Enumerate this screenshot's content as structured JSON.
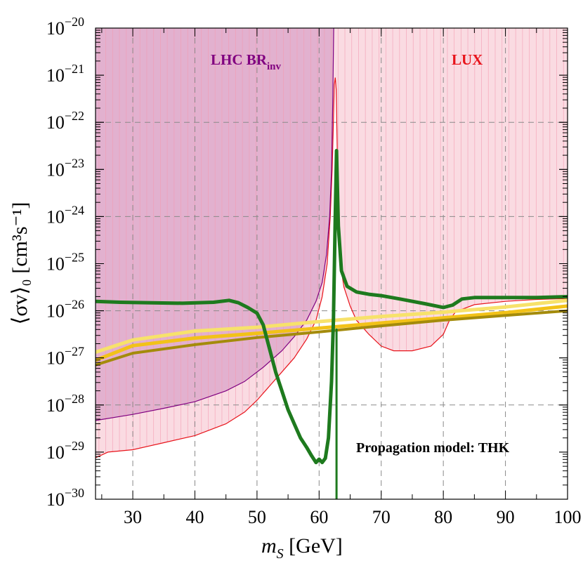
{
  "chart_data": {
    "type": "line",
    "xlabel": {
      "main": "m",
      "sub": "S",
      "rest": " [GeV]"
    },
    "ylabel": "⟨σv⟩₀ [cm³s⁻¹]",
    "xlim": [
      24,
      100
    ],
    "ylim_log10": [
      -30,
      -20
    ],
    "x_ticks": [
      30,
      40,
      50,
      60,
      70,
      80,
      90,
      100
    ],
    "y_ticks_exp": [
      -30,
      -29,
      -28,
      -27,
      -26,
      -25,
      -24,
      -23,
      -22,
      -21,
      -20
    ],
    "y_tick_base": "10",
    "grid_x": [
      30,
      40,
      50,
      60,
      70,
      80,
      90
    ],
    "grid_y_exp": [
      -28,
      -26,
      -24,
      -22
    ],
    "annotation": "Propagation model: THK",
    "regions": [
      {
        "name": "LHC BR",
        "label_sub": "inv",
        "color": "#800080",
        "fill": "#d9a3c8",
        "boundary": [
          [
            24,
            -28.33
          ],
          [
            30,
            -28.2
          ],
          [
            35,
            -28.07
          ],
          [
            40,
            -27.93
          ],
          [
            45,
            -27.7
          ],
          [
            48,
            -27.5
          ],
          [
            51,
            -27.2
          ],
          [
            54,
            -26.85
          ],
          [
            56,
            -26.55
          ],
          [
            58,
            -26.2
          ],
          [
            59.5,
            -25.8
          ],
          [
            60.5,
            -25.4
          ],
          [
            61.2,
            -24.8
          ],
          [
            61.7,
            -24
          ],
          [
            62,
            -23
          ],
          [
            62.2,
            -21.5
          ],
          [
            62.35,
            -20
          ]
        ]
      },
      {
        "name": "LUX",
        "color": "#e8141b",
        "fill": "#fadbe2",
        "boundary": [
          [
            24,
            -29.12
          ],
          [
            26,
            -29.0
          ],
          [
            30,
            -28.95
          ],
          [
            35,
            -28.8
          ],
          [
            40,
            -28.65
          ],
          [
            45,
            -28.4
          ],
          [
            48,
            -28.15
          ],
          [
            50,
            -27.9
          ],
          [
            52,
            -27.6
          ],
          [
            54,
            -27.3
          ],
          [
            56,
            -27.0
          ],
          [
            58,
            -26.6
          ],
          [
            59.5,
            -26.2
          ],
          [
            60.5,
            -25.7
          ],
          [
            61.3,
            -25.0
          ],
          [
            61.8,
            -24.0
          ],
          [
            62.1,
            -23.0
          ],
          [
            62.3,
            -22.0
          ],
          [
            62.45,
            -21.2
          ],
          [
            62.6,
            -21.05
          ],
          [
            62.75,
            -21.3
          ],
          [
            62.9,
            -22.5
          ],
          [
            63.1,
            -24.0
          ],
          [
            63.4,
            -25.0
          ],
          [
            64,
            -25.5
          ],
          [
            65,
            -25.9
          ],
          [
            66,
            -26.2
          ],
          [
            68,
            -26.5
          ],
          [
            70,
            -26.75
          ],
          [
            72,
            -26.85
          ],
          [
            75,
            -26.85
          ],
          [
            78,
            -26.75
          ],
          [
            80,
            -26.5
          ],
          [
            81,
            -26.2
          ],
          [
            82,
            -26.02
          ],
          [
            85,
            -25.87
          ],
          [
            90,
            -25.8
          ],
          [
            95,
            -25.76
          ],
          [
            100,
            -25.74
          ]
        ]
      }
    ],
    "series": [
      {
        "name": "yellow-band-upper",
        "color": "#f7e26b",
        "points": [
          [
            24,
            -26.88
          ],
          [
            30,
            -26.62
          ],
          [
            40,
            -26.43
          ],
          [
            50,
            -26.35
          ],
          [
            60,
            -26.23
          ],
          [
            70,
            -26.12
          ],
          [
            80,
            -26.03
          ],
          [
            90,
            -25.92
          ],
          [
            100,
            -25.78
          ]
        ]
      },
      {
        "name": "yellow-band-lower",
        "color": "#f2c218",
        "points": [
          [
            24,
            -27.05
          ],
          [
            30,
            -26.74
          ],
          [
            40,
            -26.58
          ],
          [
            50,
            -26.48
          ],
          [
            60,
            -26.37
          ],
          [
            70,
            -26.26
          ],
          [
            80,
            -26.15
          ],
          [
            90,
            -26.04
          ],
          [
            100,
            -25.9
          ]
        ]
      },
      {
        "name": "olive-line",
        "color": "#a48b0b",
        "points": [
          [
            24,
            -27.15
          ],
          [
            30,
            -26.9
          ],
          [
            40,
            -26.72
          ],
          [
            50,
            -26.57
          ],
          [
            60,
            -26.45
          ],
          [
            70,
            -26.32
          ],
          [
            80,
            -26.2
          ],
          [
            90,
            -26.1
          ],
          [
            100,
            -26.0
          ]
        ]
      },
      {
        "name": "thick-green-curve",
        "color": "#1e7a1e",
        "points": [
          [
            24,
            -25.8
          ],
          [
            28,
            -25.82
          ],
          [
            33,
            -25.83
          ],
          [
            38,
            -25.84
          ],
          [
            43,
            -25.82
          ],
          [
            45.5,
            -25.78
          ],
          [
            47,
            -25.83
          ],
          [
            48.5,
            -25.93
          ],
          [
            50,
            -26.05
          ],
          [
            51,
            -26.3
          ],
          [
            52,
            -26.8
          ],
          [
            53,
            -27.3
          ],
          [
            54,
            -27.7
          ],
          [
            55,
            -28.1
          ],
          [
            56,
            -28.4
          ],
          [
            57,
            -28.7
          ],
          [
            58,
            -28.9
          ],
          [
            58.8,
            -29.08
          ],
          [
            59.5,
            -29.22
          ],
          [
            60,
            -29.15
          ],
          [
            60.5,
            -29.22
          ],
          [
            61,
            -29.13
          ],
          [
            61.5,
            -28.7
          ],
          [
            62,
            -27.5
          ],
          [
            62.3,
            -26.2
          ],
          [
            62.6,
            -24.0
          ],
          [
            62.8,
            -22.6
          ],
          [
            63.1,
            -24.2
          ],
          [
            63.6,
            -25.15
          ],
          [
            64.5,
            -25.48
          ],
          [
            66,
            -25.6
          ],
          [
            68,
            -25.65
          ],
          [
            70,
            -25.68
          ],
          [
            73,
            -25.75
          ],
          [
            77,
            -25.85
          ],
          [
            80,
            -25.93
          ],
          [
            81.5,
            -25.88
          ],
          [
            83,
            -25.75
          ],
          [
            85,
            -25.72
          ],
          [
            90,
            -25.72
          ],
          [
            95,
            -25.72
          ],
          [
            100,
            -25.7
          ]
        ]
      },
      {
        "name": "thin-green-line",
        "color": "#1e7a1e",
        "points": [
          [
            62.8,
            -30
          ],
          [
            62.8,
            -26.4
          ]
        ]
      }
    ]
  }
}
